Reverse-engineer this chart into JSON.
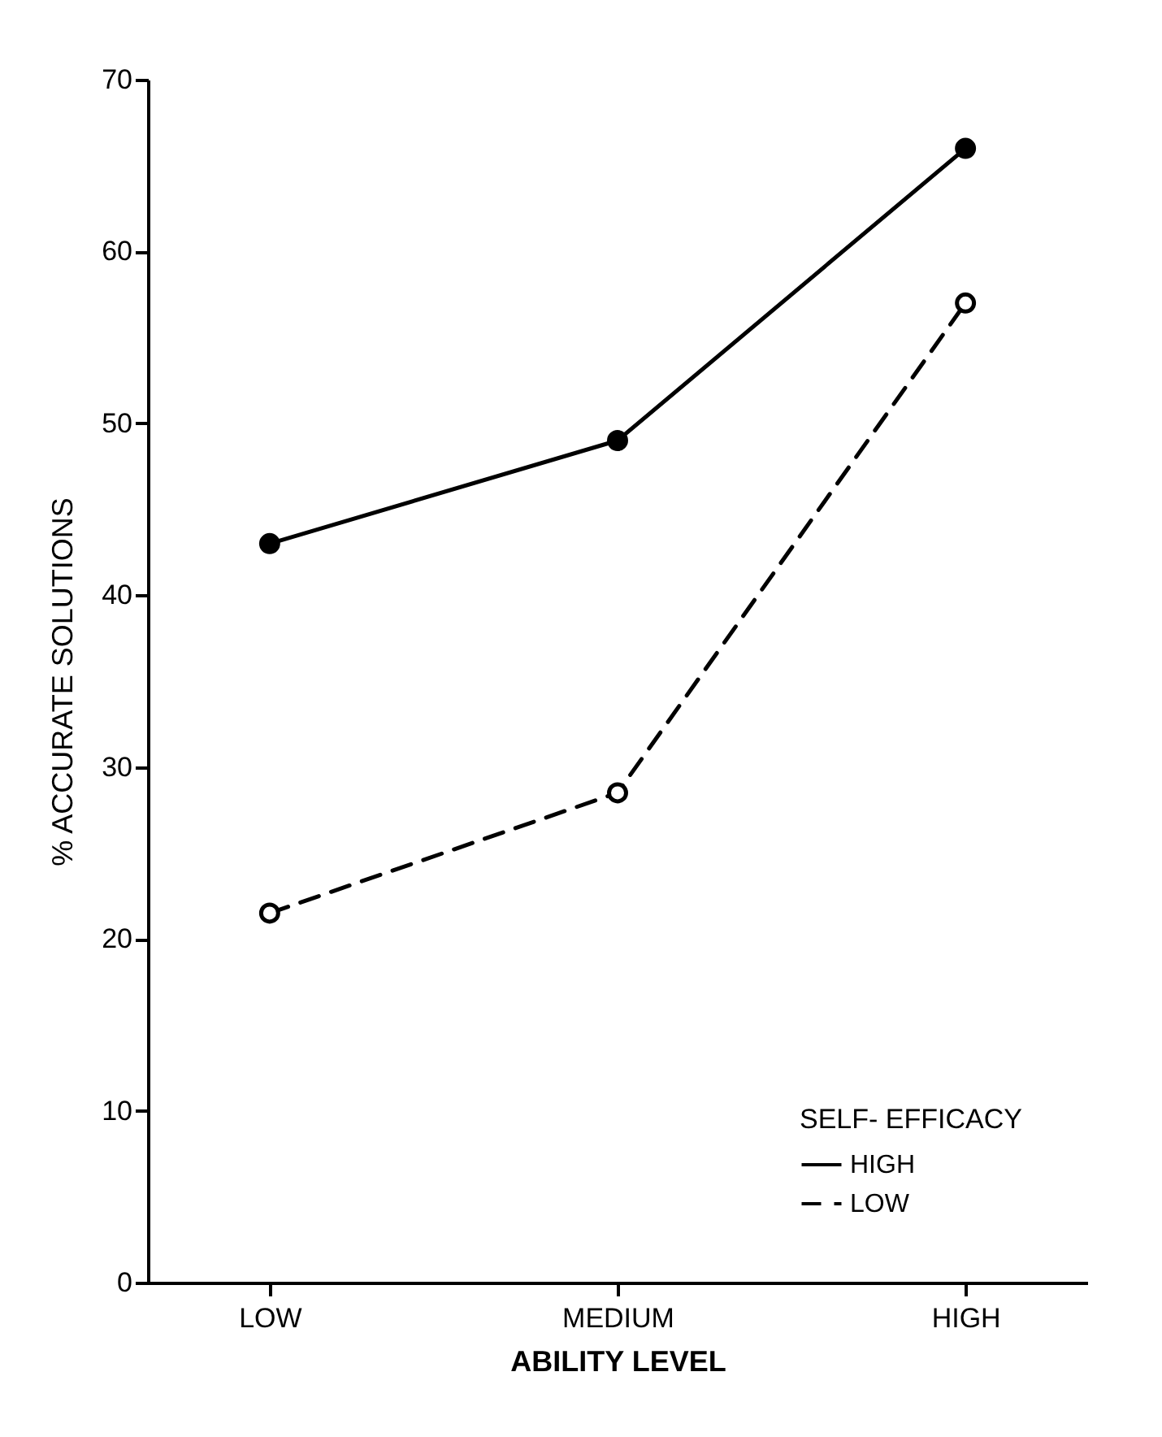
{
  "chart_data": {
    "type": "line",
    "xlabel": "ABILITY LEVEL",
    "ylabel": "% ACCURATE SOLUTIONS",
    "legend_title": "SELF- EFFICACY",
    "categories": [
      "LOW",
      "MEDIUM",
      "HIGH"
    ],
    "ylim": [
      0,
      70
    ],
    "yticks": [
      0,
      10,
      20,
      30,
      40,
      50,
      60,
      70
    ],
    "grid": false,
    "legend": "bottom right",
    "marker": "circle",
    "series": [
      {
        "name": "HIGH",
        "color": "#000000",
        "line_style": "solid",
        "values": [
          43,
          49,
          66
        ]
      },
      {
        "name": "LOW",
        "color": "#000000",
        "line_style": "dashed",
        "values": [
          21.5,
          28.5,
          57
        ]
      }
    ]
  }
}
